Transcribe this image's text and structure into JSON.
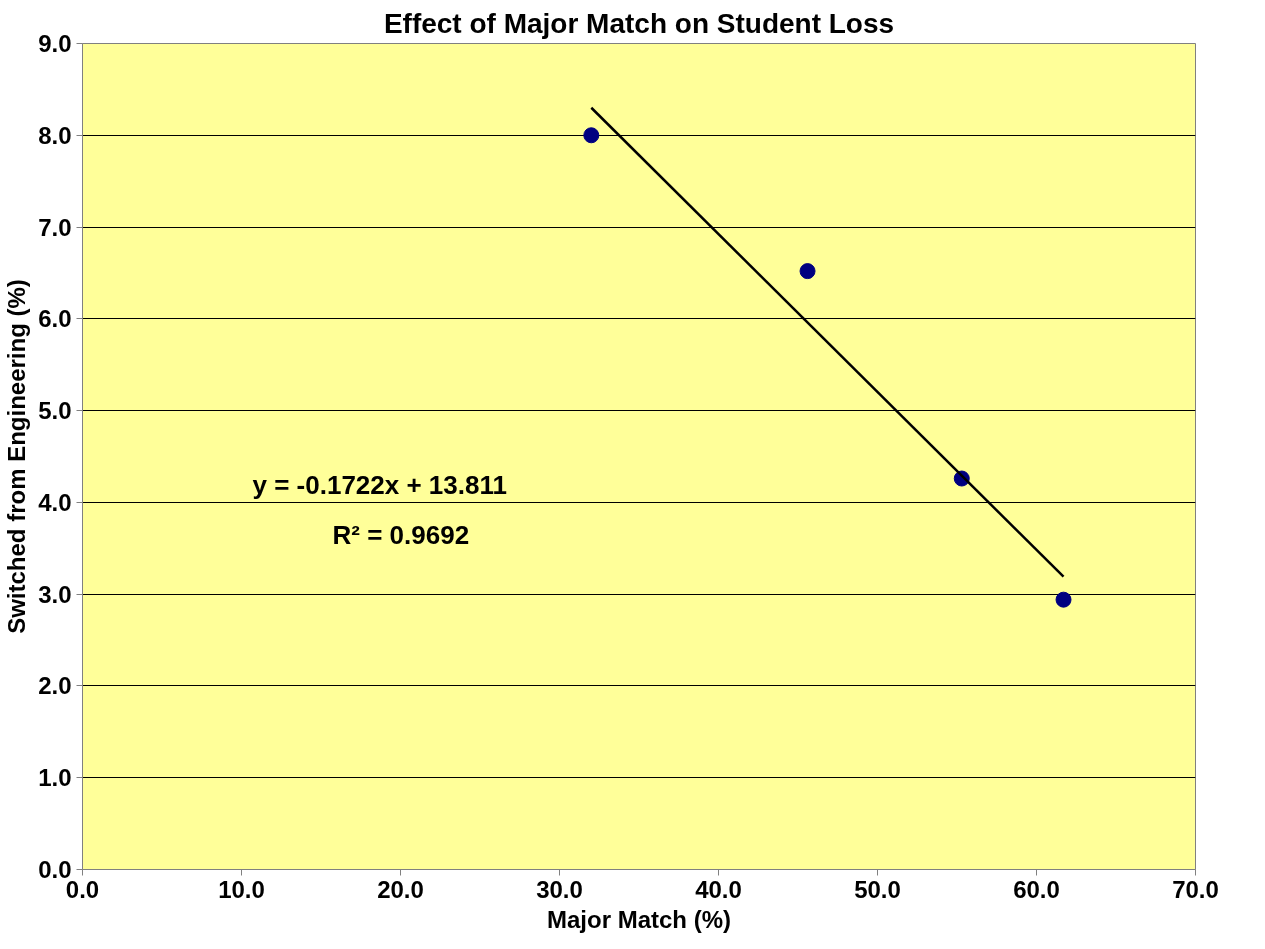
{
  "chart_data": {
    "type": "scatter",
    "title": "Effect of Major Match on Student Loss",
    "xlabel": "Major Match (%)",
    "ylabel": "Switched from Engineering (%)",
    "series": [
      {
        "color": "#000080",
        "marker": "circle",
        "x": [
          32.0,
          45.6,
          55.3,
          61.7
        ],
        "values": [
          8.0,
          6.52,
          4.26,
          2.94
        ]
      },
      {
        "type": "line",
        "color": "#000000",
        "x": [
          32.0,
          61.7
        ],
        "values": [
          8.3,
          3.19
        ]
      }
    ],
    "annotations": [
      "y = -0.1722x + 13.811",
      "R² = 0.9692"
    ],
    "xlim": [
      0,
      70
    ],
    "xticks": [
      {
        "value": 0,
        "label": "0.0"
      },
      {
        "value": 10,
        "label": "10.0"
      },
      {
        "value": 20,
        "label": "20.0"
      },
      {
        "value": 30,
        "label": "30.0"
      },
      {
        "value": 40,
        "label": "40.0"
      },
      {
        "value": 50,
        "label": "50.0"
      },
      {
        "value": 60,
        "label": "60.0"
      },
      {
        "value": 70,
        "label": "70.0"
      }
    ],
    "ylim": [
      0,
      9
    ],
    "yticks": [
      {
        "value": 0,
        "label": "0.0"
      },
      {
        "value": 1,
        "label": "1.0"
      },
      {
        "value": 2,
        "label": "2.0"
      },
      {
        "value": 3,
        "label": "3.0"
      },
      {
        "value": 4,
        "label": "4.0"
      },
      {
        "value": 5,
        "label": "5.0"
      },
      {
        "value": 6,
        "label": "6.0"
      },
      {
        "value": 7,
        "label": "7.0"
      },
      {
        "value": 8,
        "label": "8.0"
      },
      {
        "value": 9,
        "label": "9.0"
      }
    ],
    "grid": "y"
  }
}
